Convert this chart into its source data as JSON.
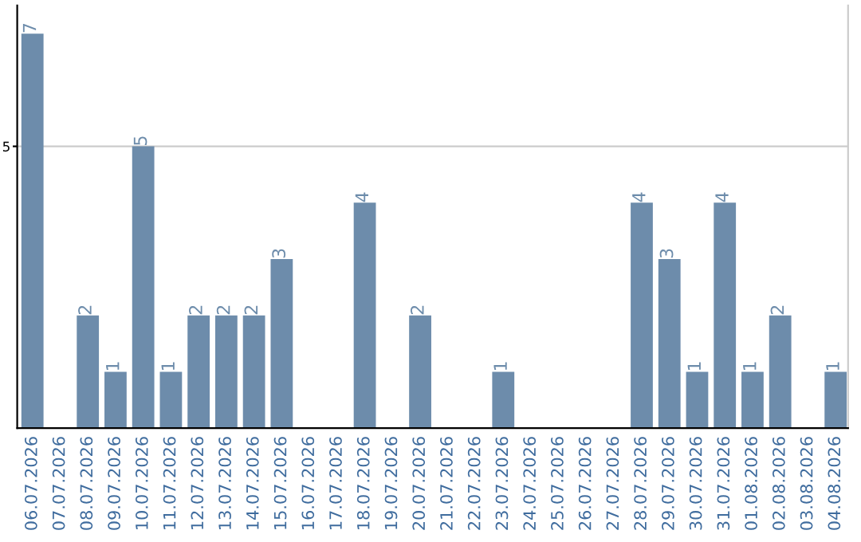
{
  "chart_data": {
    "type": "bar",
    "categories": [
      "06.07.2026",
      "07.07.2026",
      "08.07.2026",
      "09.07.2026",
      "10.07.2026",
      "11.07.2026",
      "12.07.2026",
      "13.07.2026",
      "14.07.2026",
      "15.07.2026",
      "16.07.2026",
      "17.07.2026",
      "18.07.2026",
      "19.07.2026",
      "20.07.2026",
      "21.07.2026",
      "22.07.2026",
      "23.07.2026",
      "24.07.2026",
      "25.07.2026",
      "26.07.2026",
      "27.07.2026",
      "28.07.2026",
      "29.07.2026",
      "30.07.2026",
      "31.07.2026",
      "01.08.2026",
      "02.08.2026",
      "03.08.2026",
      "04.08.2026"
    ],
    "values": [
      7,
      0,
      2,
      1,
      5,
      1,
      2,
      2,
      2,
      3,
      0,
      0,
      4,
      0,
      2,
      0,
      0,
      1,
      0,
      0,
      0,
      0,
      4,
      3,
      1,
      4,
      1,
      2,
      0,
      1
    ],
    "value_labels": [
      "7",
      null,
      "2",
      "1",
      "5",
      "1",
      "2",
      "2",
      "2",
      "3",
      null,
      null,
      "4",
      null,
      "2",
      null,
      null,
      "1",
      null,
      null,
      null,
      null,
      "4",
      "3",
      "1",
      "4",
      "1",
      "2",
      null,
      "1"
    ],
    "color": "#6d8cab",
    "ylim": [
      0,
      7.5
    ],
    "yticks": [
      5
    ],
    "grid": "y"
  }
}
